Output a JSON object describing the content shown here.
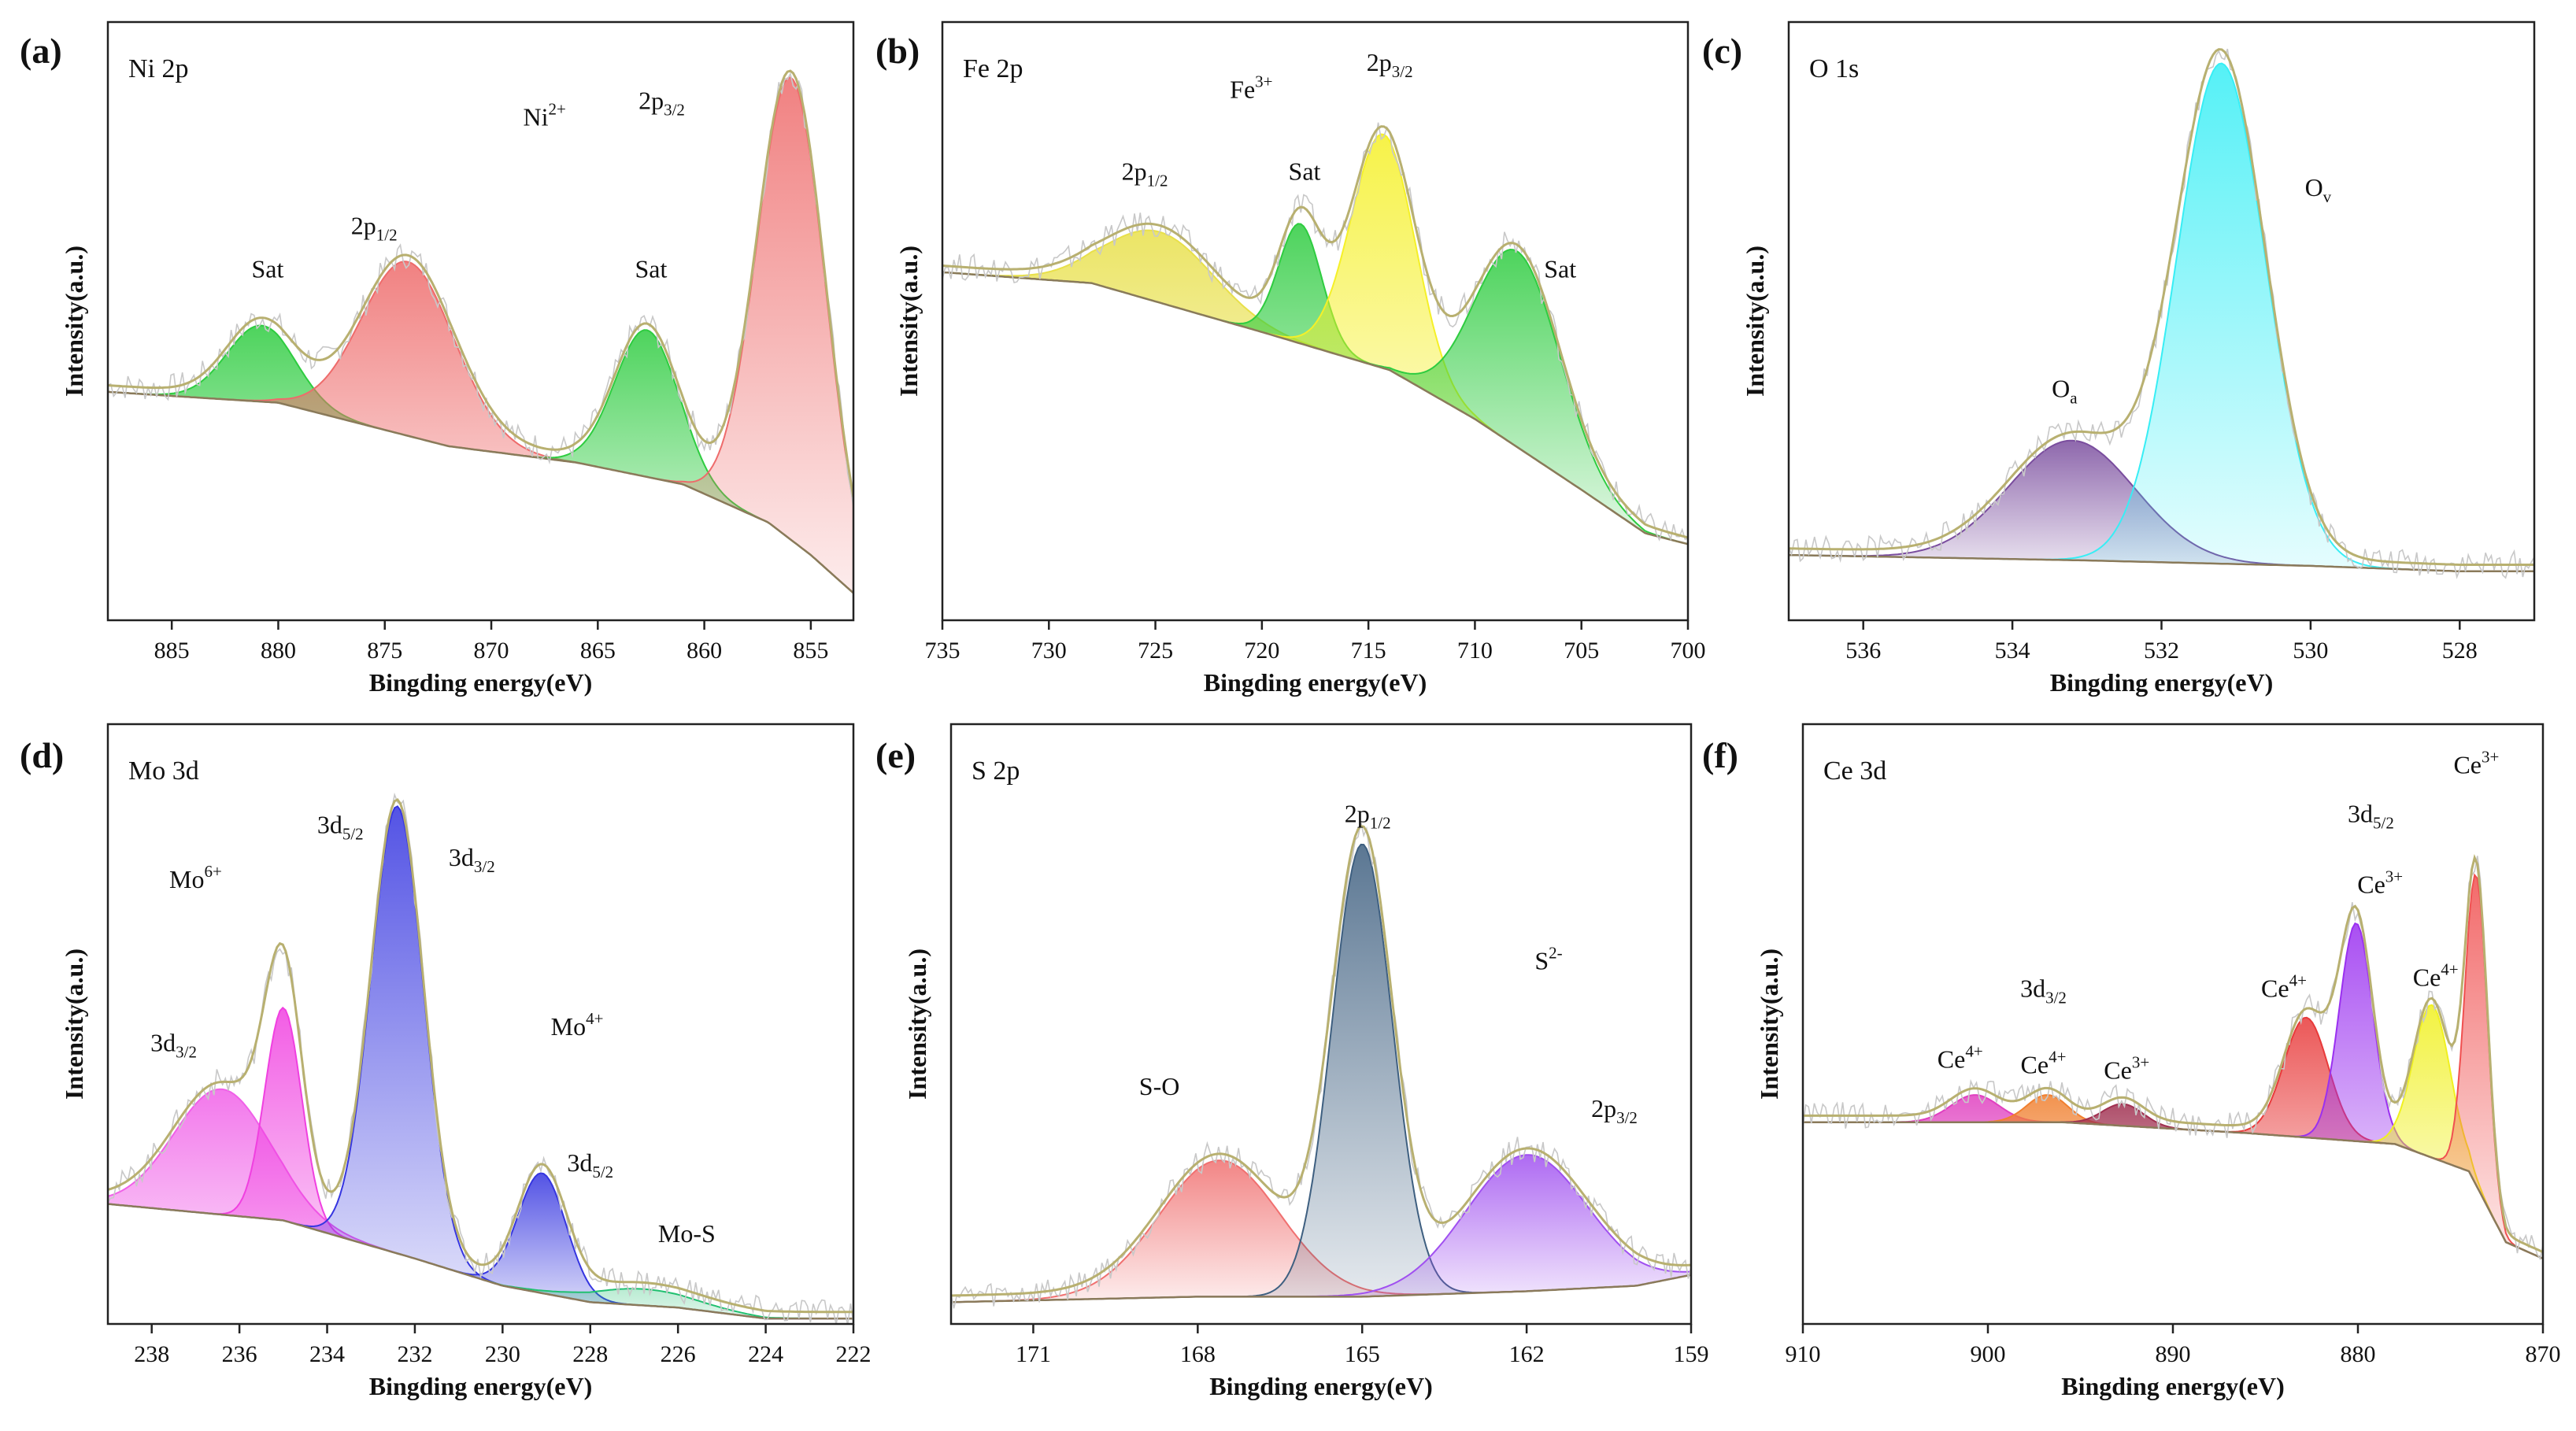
{
  "xlabel": "Bingding energy(eV)",
  "ylabel": "Intensity(a.u.)",
  "chart_data": [
    {
      "type": "line",
      "panel": "(a)",
      "title": "Ni 2p",
      "xlabel": "Bingding energy(eV)",
      "ylabel": "Intensity(a.u.)",
      "xlim": [
        888,
        853
      ],
      "ylim": [
        0,
        110
      ],
      "x_ticks": [
        885,
        880,
        875,
        870,
        865,
        860,
        855
      ],
      "background": [
        [
          888,
          42
        ],
        [
          880,
          40
        ],
        [
          872,
          32
        ],
        [
          866,
          29
        ],
        [
          861,
          25
        ],
        [
          857,
          18
        ],
        [
          855,
          12
        ],
        [
          853,
          5
        ]
      ],
      "peaks": [
        {
          "name": "Sat",
          "center": 880.8,
          "height": 14,
          "width": 1.6,
          "color": "#2ecc40"
        },
        {
          "name": "2p1/2",
          "center": 873.9,
          "height": 32,
          "width": 2.2,
          "color": "#ee6b6b"
        },
        {
          "name": "Sat",
          "center": 862.7,
          "height": 27,
          "width": 1.5,
          "color": "#2ecc40"
        },
        {
          "name": "2p3/2",
          "center": 855.9,
          "height": 85,
          "width": 1.6,
          "color": "#ee6b6b"
        }
      ],
      "annotations": [
        {
          "text": "Sat",
          "x": 880.5,
          "y": 63
        },
        {
          "text": "Sat",
          "x": 862.5,
          "y": 63
        },
        {
          "text": "2p",
          "sub": "1/2",
          "x": 875.5,
          "y": 71
        },
        {
          "text": "Ni",
          "sup": "2+",
          "x": 867.5,
          "y": 91
        },
        {
          "text": "2p",
          "sub": "3/2",
          "x": 862,
          "y": 94
        }
      ]
    },
    {
      "type": "line",
      "panel": "(b)",
      "title": "Fe 2p",
      "xlabel": "Bingding energy(eV)",
      "ylabel": "Intensity(a.u.)",
      "xlim": [
        735,
        700
      ],
      "ylim": [
        0,
        110
      ],
      "x_ticks": [
        735,
        730,
        725,
        720,
        715,
        710,
        705,
        700
      ],
      "background": [
        [
          735,
          64
        ],
        [
          728,
          62
        ],
        [
          720,
          53
        ],
        [
          714,
          46
        ],
        [
          710,
          37
        ],
        [
          705,
          24
        ],
        [
          702,
          16
        ],
        [
          700,
          14
        ]
      ],
      "peaks": [
        {
          "name": "2p1/2",
          "center": 724.8,
          "height": 13,
          "width": 2.5,
          "color": "#e8e04a"
        },
        {
          "name": "Sat",
          "center": 718.2,
          "height": 22,
          "width": 1.0,
          "color": "#2ecc40"
        },
        {
          "name": "2p3/2",
          "center": 714.3,
          "height": 43,
          "width": 1.5,
          "color": "#f5f028"
        },
        {
          "name": "Sat",
          "center": 708.0,
          "height": 36,
          "width": 2.0,
          "color": "#2ecc40"
        }
      ],
      "annotations": [
        {
          "text": "2p",
          "sub": "1/2",
          "x": 725.5,
          "y": 81
        },
        {
          "text": "Fe",
          "sup": "3+",
          "x": 720.5,
          "y": 96
        },
        {
          "text": "Sat",
          "x": 718,
          "y": 81
        },
        {
          "text": "2p",
          "sub": "3/2",
          "x": 714,
          "y": 101
        },
        {
          "text": "Sat",
          "x": 706,
          "y": 63
        }
      ]
    },
    {
      "type": "line",
      "panel": "(c)",
      "title": "O 1s",
      "xlabel": "Bingding energy(eV)",
      "ylabel": "Intensity(a.u.)",
      "xlim": [
        537,
        527
      ],
      "ylim": [
        0,
        110
      ],
      "x_ticks": [
        536,
        534,
        532,
        530,
        528
      ],
      "background": [
        [
          537,
          12
        ],
        [
          533,
          11
        ],
        [
          530,
          10
        ],
        [
          528,
          9
        ],
        [
          527,
          9
        ]
      ],
      "peaks": [
        {
          "name": "Oa",
          "center": 533.2,
          "height": 22,
          "width": 0.85,
          "color": "#7a4d9e"
        },
        {
          "name": "Ov",
          "center": 531.2,
          "height": 92,
          "width": 0.6,
          "color": "#37eef5"
        }
      ],
      "annotations": [
        {
          "text": "O",
          "sub": "a",
          "x": 533.3,
          "y": 41
        },
        {
          "text": "O",
          "sub": "v",
          "x": 529.9,
          "y": 78
        }
      ]
    },
    {
      "type": "line",
      "panel": "(d)",
      "title": "Mo 3d",
      "xlabel": "Bingding energy(eV)",
      "ylabel": "Intensity(a.u.)",
      "xlim": [
        239,
        222
      ],
      "ylim": [
        0,
        110
      ],
      "x_ticks": [
        238,
        236,
        234,
        232,
        230,
        228,
        226,
        224,
        222
      ],
      "background": [
        [
          239,
          22
        ],
        [
          235,
          19
        ],
        [
          232,
          12
        ],
        [
          230,
          7
        ],
        [
          228,
          4
        ],
        [
          226,
          3
        ],
        [
          224,
          1
        ],
        [
          222,
          1
        ]
      ],
      "peaks": [
        {
          "name": "3d3/2",
          "center": 236.4,
          "height": 23,
          "width": 1.1,
          "color": "#f060e8"
        },
        {
          "name": "3d5/2",
          "center": 235.0,
          "height": 39,
          "width": 0.42,
          "color": "#f040e0"
        },
        {
          "name": "3d3/2",
          "center": 232.4,
          "height": 82,
          "width": 0.6,
          "color": "#3535e0"
        },
        {
          "name": "3d5/2",
          "center": 229.1,
          "height": 22,
          "width": 0.55,
          "color": "#3535e0"
        },
        {
          "name": "Mo-S",
          "center": 226.8,
          "height": 3,
          "width": 1.2,
          "color": "#20c070"
        }
      ],
      "annotations": [
        {
          "text": "3d",
          "sub": "3/2",
          "x": 237.5,
          "y": 50
        },
        {
          "text": "Mo",
          "sup": "6+",
          "x": 237,
          "y": 80
        },
        {
          "text": "3d",
          "sub": "5/2",
          "x": 233.7,
          "y": 90
        },
        {
          "text": "3d",
          "sub": "3/2",
          "x": 230.7,
          "y": 84
        },
        {
          "text": "Mo",
          "sup": "4+",
          "x": 228.3,
          "y": 53
        },
        {
          "text": "3d",
          "sub": "5/2",
          "x": 228,
          "y": 28
        },
        {
          "text": "Mo-S",
          "x": 225.8,
          "y": 15
        }
      ]
    },
    {
      "type": "line",
      "panel": "(e)",
      "title": "S 2p",
      "xlabel": "Bingding energy(eV)",
      "ylabel": "Intensity(a.u.)",
      "xlim": [
        172.5,
        159
      ],
      "ylim": [
        0,
        110
      ],
      "x_ticks": [
        171,
        168,
        165,
        162,
        159
      ],
      "background": [
        [
          172.5,
          4
        ],
        [
          168,
          5
        ],
        [
          165,
          5
        ],
        [
          162,
          6
        ],
        [
          160,
          7
        ],
        [
          159,
          9
        ]
      ],
      "peaks": [
        {
          "name": "S-O",
          "center": 167.6,
          "height": 25,
          "width": 1.1,
          "color": "#f07070"
        },
        {
          "name": "2p1/2",
          "center": 165.0,
          "height": 83,
          "width": 0.55,
          "color": "#3e5f80"
        },
        {
          "name": "2p3/2",
          "center": 162.0,
          "height": 25,
          "width": 1.1,
          "color": "#a050f0"
        }
      ],
      "annotations": [
        {
          "text": "S-O",
          "x": 168.7,
          "y": 42
        },
        {
          "text": "2p",
          "sub": "1/2",
          "x": 164.9,
          "y": 92
        },
        {
          "text": "S",
          "sup": "2-",
          "x": 161.6,
          "y": 65
        },
        {
          "text": "2p",
          "sub": "3/2",
          "x": 160.4,
          "y": 38
        }
      ]
    },
    {
      "type": "line",
      "panel": "(f)",
      "title": "Ce 3d",
      "xlabel": "Bingding energy(eV)",
      "ylabel": "Intensity(a.u.)",
      "xlim": [
        910,
        870
      ],
      "ylim": [
        0,
        110
      ],
      "x_ticks": [
        910,
        900,
        890,
        880,
        870
      ],
      "background": [
        [
          910,
          37
        ],
        [
          896,
          37
        ],
        [
          886,
          35
        ],
        [
          878,
          33
        ],
        [
          874,
          28
        ],
        [
          872,
          15
        ],
        [
          870,
          12
        ]
      ],
      "peaks": [
        {
          "name": "Ce4+",
          "center": 900.7,
          "height": 5,
          "width": 1.3,
          "color": "#e040c0"
        },
        {
          "name": "Ce4+",
          "center": 896.8,
          "height": 5,
          "width": 1.1,
          "color": "#f08030"
        },
        {
          "name": "Ce3+",
          "center": 892.7,
          "height": 4,
          "width": 1.1,
          "color": "#a03050"
        },
        {
          "name": "Ce4+",
          "center": 882.8,
          "height": 22,
          "width": 1.2,
          "color": "#e83a3a"
        },
        {
          "name": "Ce3+",
          "center": 880.1,
          "height": 40,
          "width": 0.9,
          "color": "#9a30f0"
        },
        {
          "name": "Ce4+",
          "center": 876.0,
          "height": 28,
          "width": 1.0,
          "color": "#f0f020"
        },
        {
          "name": "Ce3+",
          "center": 873.6,
          "height": 57,
          "width": 0.6,
          "color": "#f05050"
        }
      ],
      "annotations": [
        {
          "text": "Ce",
          "sup": "4+",
          "x": 901.5,
          "y": 47
        },
        {
          "text": "3d",
          "sub": "3/2",
          "x": 897,
          "y": 60
        },
        {
          "text": "Ce",
          "sup": "4+",
          "x": 897,
          "y": 46
        },
        {
          "text": "Ce",
          "sup": "3+",
          "x": 892.5,
          "y": 45
        },
        {
          "text": "Ce",
          "sup": "4+",
          "x": 884,
          "y": 60
        },
        {
          "text": "3d",
          "sub": "5/2",
          "x": 879.3,
          "y": 92
        },
        {
          "text": "Ce",
          "sup": "3+",
          "x": 878.8,
          "y": 79
        },
        {
          "text": "Ce",
          "sup": "4+",
          "x": 875.8,
          "y": 62
        },
        {
          "text": "Ce",
          "sup": "3+",
          "x": 873.6,
          "y": 101
        }
      ]
    }
  ]
}
